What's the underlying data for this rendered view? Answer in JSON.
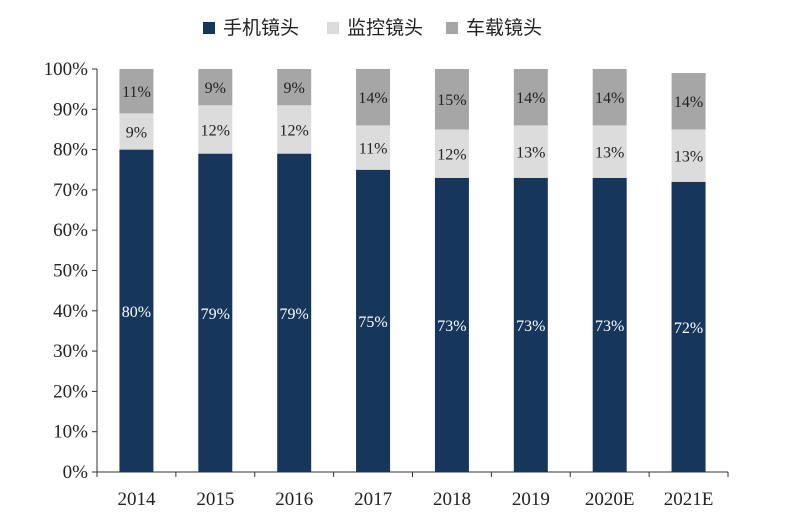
{
  "chart_data": {
    "type": "bar",
    "stacked": true,
    "title": "",
    "xlabel": "",
    "ylabel": "",
    "ylim": [
      0,
      100
    ],
    "yticks": [
      "0%",
      "10%",
      "20%",
      "30%",
      "40%",
      "50%",
      "60%",
      "70%",
      "80%",
      "90%",
      "100%"
    ],
    "categories": [
      "2014",
      "2015",
      "2016",
      "2017",
      "2018",
      "2019",
      "2020E",
      "2021E"
    ],
    "legend_position": "top",
    "grid": false,
    "series": [
      {
        "name": "手机镜头",
        "color": "#16365c",
        "label_color": "#ffffff",
        "values": [
          80,
          79,
          79,
          75,
          73,
          73,
          73,
          72
        ],
        "labels": [
          "80%",
          "79%",
          "79%",
          "75%",
          "73%",
          "73%",
          "73%",
          "72%"
        ]
      },
      {
        "name": "监控镜头",
        "color": "#dcdcdc",
        "label_color": "#222222",
        "values": [
          9,
          12,
          12,
          11,
          12,
          13,
          13,
          13
        ],
        "labels": [
          "9%",
          "12%",
          "12%",
          "11%",
          "12%",
          "13%",
          "13%",
          "13%"
        ]
      },
      {
        "name": "车载镜头",
        "color": "#a6a6a6",
        "label_color": "#222222",
        "values": [
          11,
          9,
          9,
          14,
          15,
          14,
          14,
          14
        ],
        "labels": [
          "11%",
          "9%",
          "9%",
          "14%",
          "15%",
          "14%",
          "14%",
          "14%"
        ]
      }
    ]
  }
}
